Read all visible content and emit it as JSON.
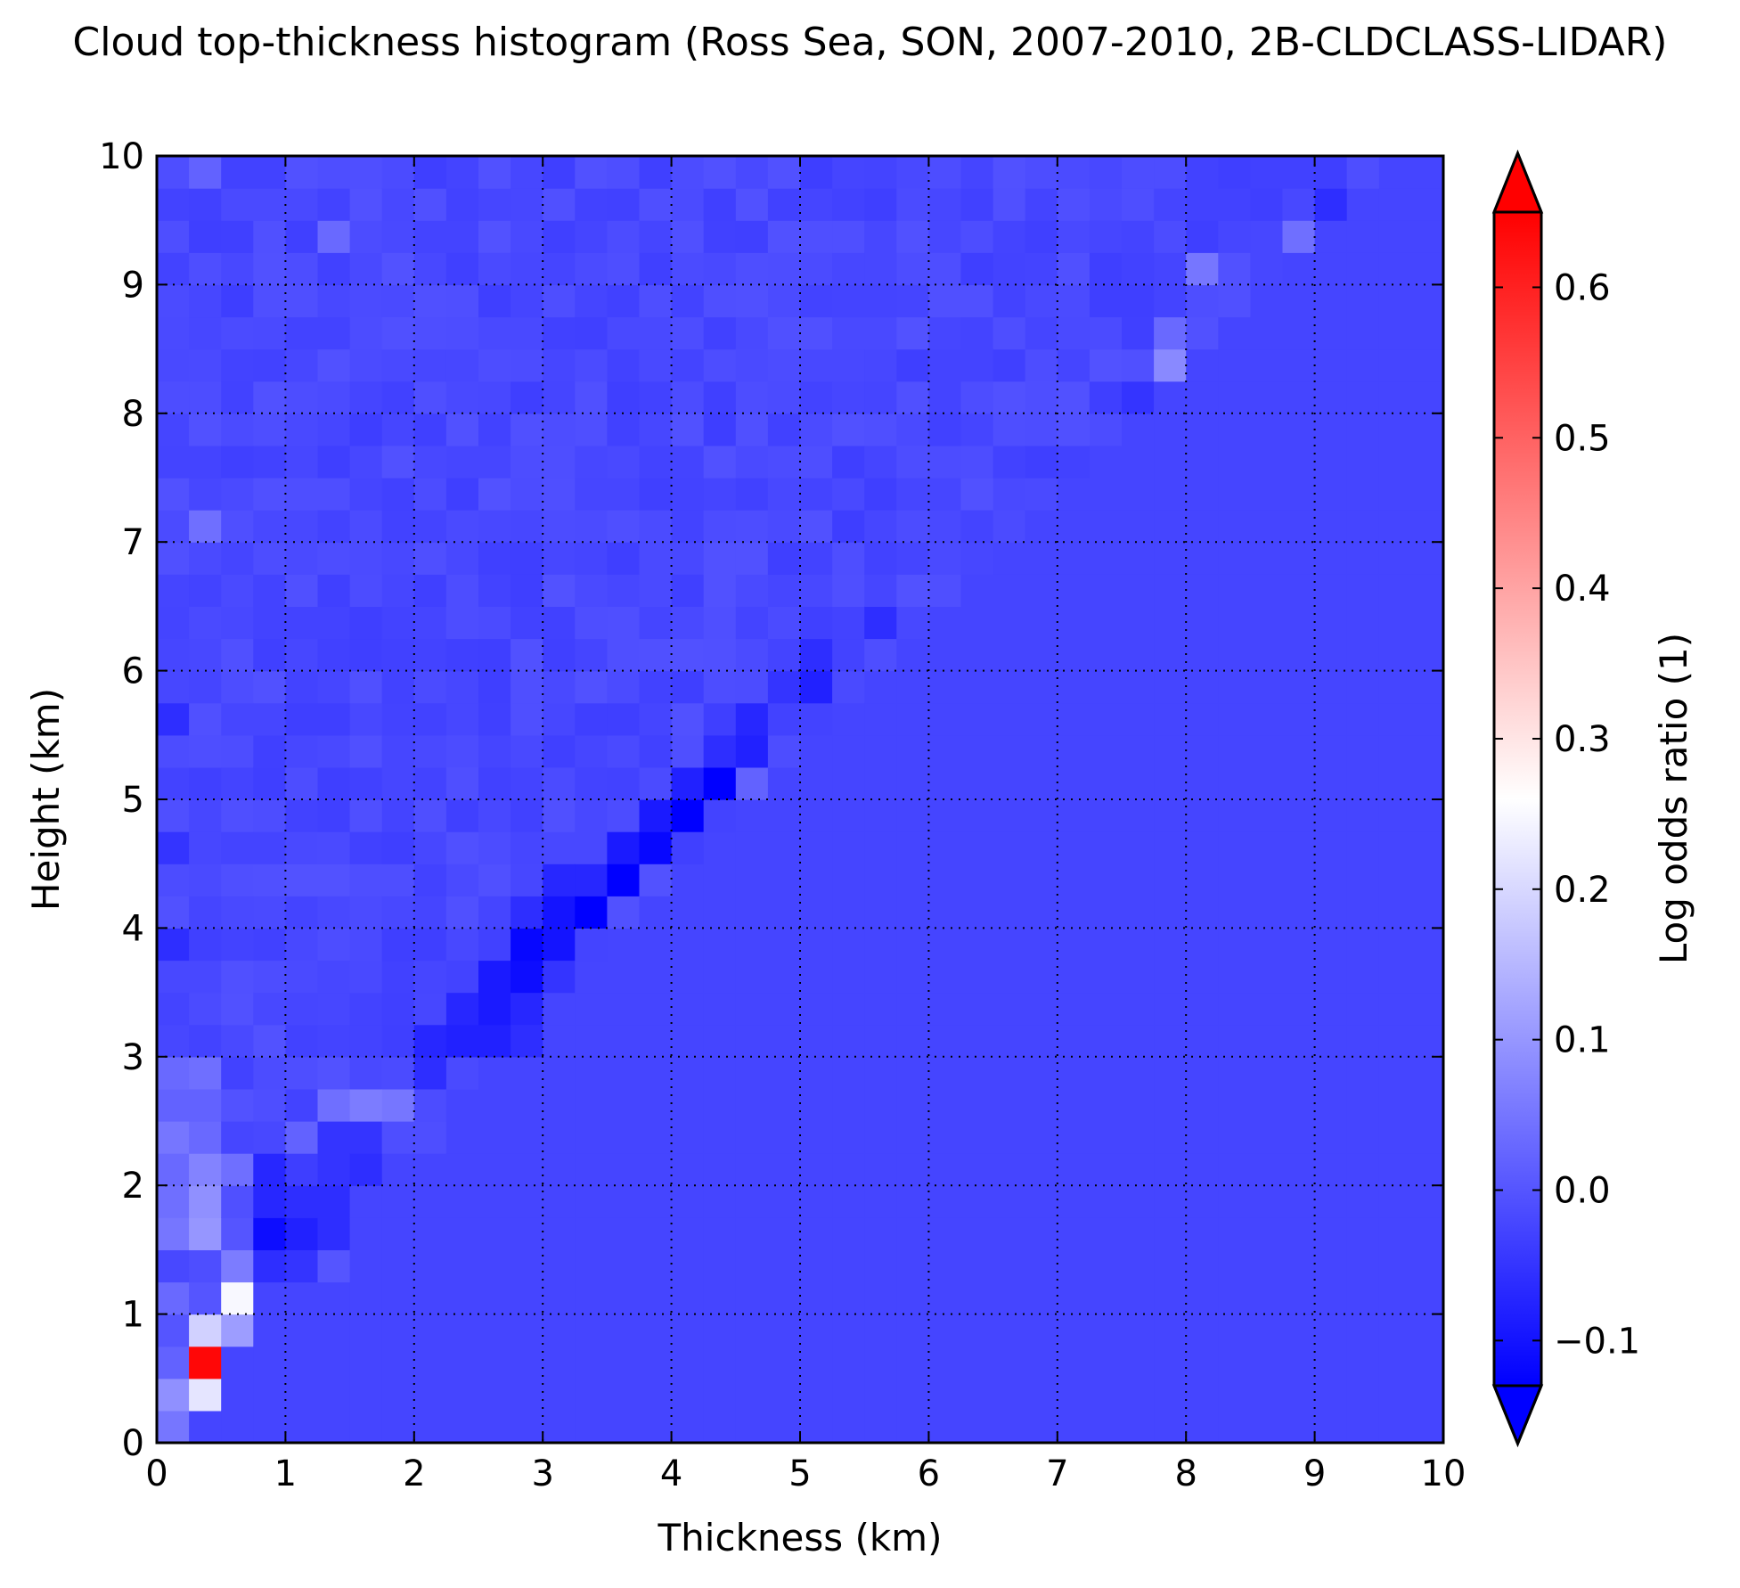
{
  "chart_data": {
    "type": "heatmap",
    "title": "Cloud top-thickness histogram (Ross Sea, SON, 2007-2010, 2B-CLDCLASS-LIDAR)",
    "xlabel": "Thickness (km)",
    "ylabel": "Height (km)",
    "xlim": [
      0,
      10
    ],
    "ylim": [
      0,
      10
    ],
    "xticks": [
      "0",
      "1",
      "2",
      "3",
      "4",
      "5",
      "6",
      "7",
      "8",
      "9",
      "10"
    ],
    "yticks": [
      "0",
      "1",
      "2",
      "3",
      "4",
      "5",
      "6",
      "7",
      "8",
      "9",
      "10"
    ],
    "grid": true,
    "grid_style": "dotted",
    "bin_size_km": 0.25,
    "n_bins": 40,
    "colorbar": {
      "label": "Log odds ratio (1)",
      "vmin": -0.13,
      "vmax": 0.65,
      "extend": "both",
      "ticks": [
        -0.1,
        0.0,
        0.1,
        0.2,
        0.3,
        0.4,
        0.5,
        0.6
      ],
      "tick_labels": [
        "−0.1",
        "0.0",
        "0.1",
        "0.2",
        "0.3",
        "0.4",
        "0.5",
        "0.6"
      ],
      "colormap": "bwr",
      "colormap_center": 0.26,
      "colors": {
        "low": "#0000ff",
        "mid": "#ffffff",
        "high": "#ff0000"
      }
    },
    "background_value": -0.025,
    "upper_triangle_mean": -0.02,
    "upper_triangle_variation": 0.015,
    "cells": [
      {
        "x": 0.375,
        "y": 0.625,
        "value": 0.64
      },
      {
        "x": 0.375,
        "y": 0.375,
        "value": 0.22
      },
      {
        "x": 0.375,
        "y": 0.875,
        "value": 0.19
      },
      {
        "x": 0.625,
        "y": 1.125,
        "value": 0.25
      },
      {
        "x": 0.625,
        "y": 0.875,
        "value": 0.11
      },
      {
        "x": 0.125,
        "y": 0.125,
        "value": 0.05
      },
      {
        "x": 0.125,
        "y": 0.375,
        "value": 0.09
      },
      {
        "x": 0.125,
        "y": 0.625,
        "value": 0.02
      },
      {
        "x": 0.125,
        "y": 0.875,
        "value": 0.0
      },
      {
        "x": 0.125,
        "y": 1.125,
        "value": 0.03
      },
      {
        "x": 0.375,
        "y": 1.125,
        "value": 0.0
      },
      {
        "x": 0.625,
        "y": 1.375,
        "value": 0.06
      },
      {
        "x": 0.375,
        "y": 1.375,
        "value": -0.01
      },
      {
        "x": 0.125,
        "y": 1.375,
        "value": -0.02
      },
      {
        "x": 0.375,
        "y": 1.625,
        "value": 0.1
      },
      {
        "x": 0.375,
        "y": 1.875,
        "value": 0.09
      },
      {
        "x": 0.375,
        "y": 2.125,
        "value": 0.07
      },
      {
        "x": 0.375,
        "y": 2.375,
        "value": 0.03
      },
      {
        "x": 0.375,
        "y": 2.625,
        "value": 0.02
      },
      {
        "x": 0.375,
        "y": 2.875,
        "value": 0.04
      },
      {
        "x": 0.125,
        "y": 1.625,
        "value": 0.05
      },
      {
        "x": 0.125,
        "y": 1.875,
        "value": 0.04
      },
      {
        "x": 0.125,
        "y": 2.125,
        "value": 0.03
      },
      {
        "x": 0.125,
        "y": 2.375,
        "value": 0.05
      },
      {
        "x": 0.125,
        "y": 2.625,
        "value": 0.02
      },
      {
        "x": 0.125,
        "y": 2.875,
        "value": 0.03
      },
      {
        "x": 0.625,
        "y": 2.125,
        "value": 0.04
      },
      {
        "x": 0.625,
        "y": 1.625,
        "value": 0.0
      },
      {
        "x": 0.875,
        "y": 1.625,
        "value": -0.11
      },
      {
        "x": 0.875,
        "y": 1.375,
        "value": -0.06
      },
      {
        "x": 0.875,
        "y": 1.875,
        "value": -0.07
      },
      {
        "x": 0.875,
        "y": 2.125,
        "value": -0.07
      },
      {
        "x": 1.125,
        "y": 1.625,
        "value": -0.08
      },
      {
        "x": 1.125,
        "y": 1.875,
        "value": -0.06
      },
      {
        "x": 1.125,
        "y": 1.375,
        "value": -0.05
      },
      {
        "x": 1.375,
        "y": 1.875,
        "value": -0.06
      },
      {
        "x": 1.375,
        "y": 1.625,
        "value": -0.06
      },
      {
        "x": 1.375,
        "y": 2.125,
        "value": -0.05
      },
      {
        "x": 1.375,
        "y": 2.375,
        "value": -0.05
      },
      {
        "x": 1.625,
        "y": 2.125,
        "value": -0.06
      },
      {
        "x": 1.625,
        "y": 2.375,
        "value": -0.05
      },
      {
        "x": 1.375,
        "y": 1.375,
        "value": 0.0
      },
      {
        "x": 1.125,
        "y": 2.375,
        "value": 0.02
      },
      {
        "x": 1.375,
        "y": 2.625,
        "value": 0.04
      },
      {
        "x": 1.625,
        "y": 2.625,
        "value": 0.06
      },
      {
        "x": 1.875,
        "y": 2.625,
        "value": 0.05
      },
      {
        "x": 1.875,
        "y": 2.375,
        "value": -0.01
      },
      {
        "x": 2.125,
        "y": 2.375,
        "value": -0.01
      },
      {
        "x": 2.125,
        "y": 2.875,
        "value": -0.06
      },
      {
        "x": 2.125,
        "y": 3.125,
        "value": -0.07
      },
      {
        "x": 2.375,
        "y": 3.125,
        "value": -0.08
      },
      {
        "x": 2.375,
        "y": 3.375,
        "value": -0.07
      },
      {
        "x": 2.625,
        "y": 3.125,
        "value": -0.08
      },
      {
        "x": 2.625,
        "y": 3.375,
        "value": -0.09
      },
      {
        "x": 2.625,
        "y": 3.625,
        "value": -0.09
      },
      {
        "x": 2.875,
        "y": 3.125,
        "value": -0.06
      },
      {
        "x": 2.875,
        "y": 3.375,
        "value": -0.07
      },
      {
        "x": 2.875,
        "y": 3.625,
        "value": -0.11
      },
      {
        "x": 2.875,
        "y": 3.875,
        "value": -0.12
      },
      {
        "x": 2.875,
        "y": 4.125,
        "value": -0.06
      },
      {
        "x": 3.125,
        "y": 3.625,
        "value": -0.05
      },
      {
        "x": 3.125,
        "y": 3.875,
        "value": -0.1
      },
      {
        "x": 3.125,
        "y": 4.125,
        "value": -0.1
      },
      {
        "x": 3.125,
        "y": 4.375,
        "value": -0.07
      },
      {
        "x": 3.375,
        "y": 4.125,
        "value": -0.13
      },
      {
        "x": 3.375,
        "y": 4.375,
        "value": -0.07
      },
      {
        "x": 3.625,
        "y": 4.375,
        "value": -0.13
      },
      {
        "x": 3.625,
        "y": 4.625,
        "value": -0.09
      },
      {
        "x": 3.875,
        "y": 4.625,
        "value": -0.12
      },
      {
        "x": 3.875,
        "y": 4.875,
        "value": -0.09
      },
      {
        "x": 4.125,
        "y": 4.875,
        "value": -0.14
      },
      {
        "x": 4.125,
        "y": 5.125,
        "value": -0.08
      },
      {
        "x": 4.375,
        "y": 5.125,
        "value": -0.14
      },
      {
        "x": 4.375,
        "y": 5.375,
        "value": -0.06
      },
      {
        "x": 4.625,
        "y": 5.375,
        "value": -0.08
      },
      {
        "x": 4.625,
        "y": 5.625,
        "value": -0.07
      },
      {
        "x": 4.875,
        "y": 5.875,
        "value": -0.05
      },
      {
        "x": 5.125,
        "y": 5.875,
        "value": -0.08
      },
      {
        "x": 5.125,
        "y": 6.125,
        "value": -0.06
      },
      {
        "x": 5.625,
        "y": 6.375,
        "value": -0.06
      },
      {
        "x": 4.625,
        "y": 5.125,
        "value": 0.02
      },
      {
        "x": 7.625,
        "y": 8.125,
        "value": -0.05
      },
      {
        "x": 7.875,
        "y": 8.375,
        "value": 0.08
      },
      {
        "x": 7.875,
        "y": 8.625,
        "value": 0.03
      },
      {
        "x": 8.125,
        "y": 9.125,
        "value": 0.05
      },
      {
        "x": 9.125,
        "y": 9.625,
        "value": -0.06
      },
      {
        "x": 8.875,
        "y": 9.375,
        "value": 0.04
      },
      {
        "x": 0.125,
        "y": 3.875,
        "value": -0.06
      },
      {
        "x": 0.125,
        "y": 4.625,
        "value": -0.05
      },
      {
        "x": 0.125,
        "y": 5.625,
        "value": -0.06
      },
      {
        "x": 0.375,
        "y": 7.125,
        "value": 0.04
      },
      {
        "x": 1.375,
        "y": 9.375,
        "value": 0.03
      },
      {
        "x": 0.375,
        "y": 9.875,
        "value": 0.02
      }
    ]
  }
}
